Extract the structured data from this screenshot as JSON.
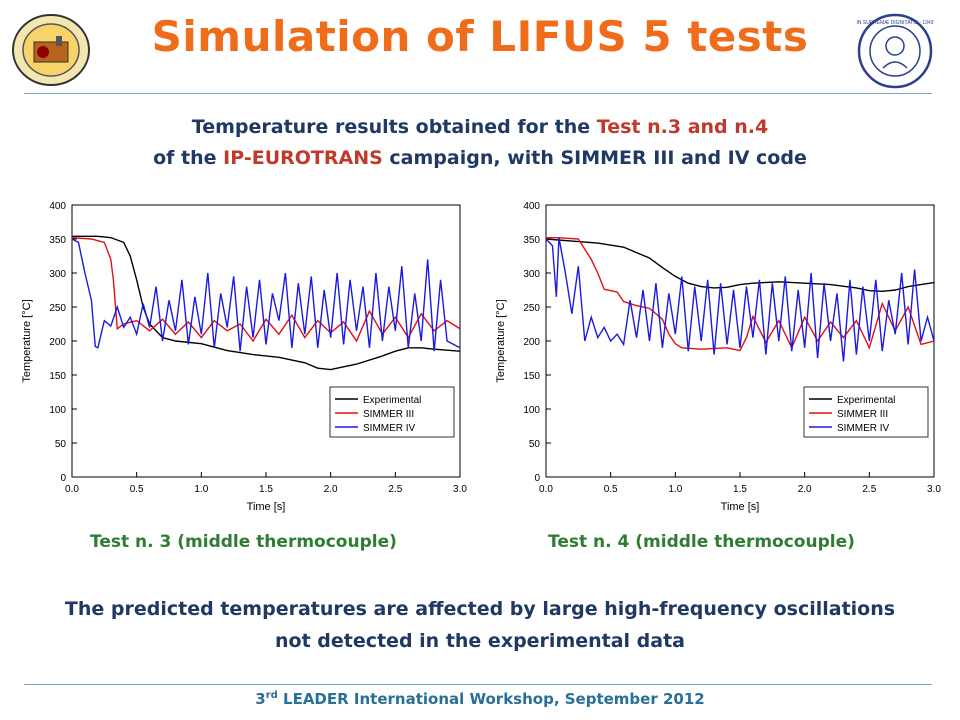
{
  "header": {
    "title": "Simulation of LIFUS 5 tests",
    "subtitle_line1_a": "Temperature results obtained for the ",
    "subtitle_line1_b": "Test n.3 and n.4",
    "subtitle_line2_a": "of the ",
    "subtitle_line2_b": "IP-EUROTRANS",
    "subtitle_line2_c": " campaign, with SIMMER III and IV code"
  },
  "captions": {
    "left": "Test n. 3 (middle thermocouple)",
    "right": "Test  n. 4 (middle thermocouple)"
  },
  "conclusion": {
    "line1": "The predicted temperatures are affected by large high-frequency oscillations",
    "line2": "not detected in the experimental data"
  },
  "footer": {
    "pre": "3",
    "sup": "rd",
    "post": " LEADER International Workshop, September 2012"
  },
  "logos": {
    "left_icon": "enea-seal-icon",
    "right_icon": "university-seal-icon",
    "right_text": "IN SUPREMÆ DIGNITATIS · 1343"
  },
  "colors": {
    "title": "#ef6c1a",
    "text": "#1f3864",
    "highlight": "#c0392b",
    "caption": "#2e7d32",
    "experimental": "#000000",
    "simmer3": "#e01010",
    "simmer4": "#1a1ae0"
  },
  "chart_data": [
    {
      "type": "line",
      "xlabel": "Time [s]",
      "ylabel": "Temperature [°C]",
      "xlim": [
        0,
        3
      ],
      "ylim": [
        0,
        400
      ],
      "xticks": [
        "0.0",
        "0.5",
        "1.0",
        "1.5",
        "2.0",
        "2.5",
        "3.0"
      ],
      "yticks": [
        "0",
        "50",
        "100",
        "150",
        "200",
        "250",
        "300",
        "350",
        "400"
      ],
      "legend_position": "bottom-right",
      "series": [
        {
          "name": "Experimental",
          "color": "#000000",
          "x": [
            0,
            0.2,
            0.3,
            0.4,
            0.45,
            0.5,
            0.55,
            0.6,
            0.7,
            0.8,
            1.0,
            1.2,
            1.4,
            1.6,
            1.7,
            1.8,
            1.9,
            2.0,
            2.2,
            2.4,
            2.5,
            2.6,
            2.7,
            2.8,
            3.0
          ],
          "y": [
            354,
            354,
            352,
            345,
            325,
            290,
            250,
            225,
            205,
            200,
            196,
            186,
            180,
            176,
            172,
            168,
            160,
            158,
            166,
            178,
            185,
            190,
            190,
            188,
            185
          ]
        },
        {
          "name": "SIMMER III",
          "color": "#e01010",
          "x": [
            0,
            0.15,
            0.25,
            0.3,
            0.32,
            0.35,
            0.4,
            0.5,
            0.6,
            0.7,
            0.8,
            0.9,
            1.0,
            1.1,
            1.2,
            1.3,
            1.4,
            1.5,
            1.6,
            1.7,
            1.8,
            1.9,
            2.0,
            2.1,
            2.2,
            2.3,
            2.4,
            2.5,
            2.6,
            2.7,
            2.8,
            2.9,
            3.0
          ],
          "y": [
            352,
            350,
            345,
            320,
            290,
            218,
            225,
            230,
            215,
            232,
            210,
            228,
            205,
            230,
            215,
            225,
            200,
            232,
            210,
            238,
            205,
            230,
            212,
            228,
            200,
            244,
            210,
            235,
            205,
            240,
            215,
            230,
            218
          ]
        },
        {
          "name": "SIMMER IV",
          "color": "#1a1ae0",
          "x": [
            0,
            0.05,
            0.1,
            0.15,
            0.18,
            0.2,
            0.25,
            0.3,
            0.35,
            0.4,
            0.45,
            0.5,
            0.55,
            0.6,
            0.65,
            0.7,
            0.75,
            0.8,
            0.85,
            0.9,
            0.95,
            1.0,
            1.05,
            1.1,
            1.15,
            1.2,
            1.25,
            1.3,
            1.35,
            1.4,
            1.45,
            1.5,
            1.55,
            1.6,
            1.65,
            1.7,
            1.75,
            1.8,
            1.85,
            1.9,
            1.95,
            2.0,
            2.05,
            2.1,
            2.15,
            2.2,
            2.25,
            2.3,
            2.35,
            2.4,
            2.45,
            2.5,
            2.55,
            2.6,
            2.65,
            2.7,
            2.75,
            2.8,
            2.85,
            2.9,
            2.95,
            3.0
          ],
          "y": [
            350,
            345,
            300,
            260,
            192,
            190,
            230,
            222,
            250,
            220,
            235,
            210,
            255,
            220,
            280,
            200,
            260,
            215,
            290,
            195,
            265,
            210,
            300,
            190,
            270,
            220,
            295,
            185,
            280,
            205,
            290,
            195,
            270,
            230,
            300,
            190,
            285,
            210,
            295,
            190,
            275,
            205,
            300,
            195,
            290,
            215,
            280,
            190,
            300,
            200,
            280,
            215,
            310,
            190,
            270,
            200,
            320,
            185,
            290,
            200,
            195,
            190
          ]
        }
      ]
    },
    {
      "type": "line",
      "xlabel": "Time [s]",
      "ylabel": "Temperature [°C]",
      "xlim": [
        0,
        3
      ],
      "ylim": [
        0,
        400
      ],
      "xticks": [
        "0.0",
        "0.5",
        "1.0",
        "1.5",
        "2.0",
        "2.5",
        "3.0"
      ],
      "yticks": [
        "0",
        "50",
        "100",
        "150",
        "200",
        "250",
        "300",
        "350",
        "400"
      ],
      "legend_position": "bottom-right",
      "series": [
        {
          "name": "Experimental",
          "color": "#000000",
          "x": [
            0,
            0.2,
            0.4,
            0.6,
            0.8,
            0.9,
            1.0,
            1.1,
            1.2,
            1.3,
            1.4,
            1.5,
            1.6,
            1.8,
            2.0,
            2.2,
            2.4,
            2.5,
            2.6,
            2.7,
            2.8,
            3.0
          ],
          "y": [
            350,
            347,
            344,
            338,
            322,
            308,
            295,
            285,
            280,
            278,
            279,
            283,
            285,
            287,
            285,
            283,
            278,
            274,
            273,
            275,
            280,
            286
          ]
        },
        {
          "name": "SIMMER III",
          "color": "#e01010",
          "x": [
            0,
            0.1,
            0.25,
            0.35,
            0.4,
            0.45,
            0.55,
            0.6,
            0.7,
            0.8,
            0.9,
            0.95,
            1.0,
            1.05,
            1.2,
            1.4,
            1.5,
            1.55,
            1.6,
            1.7,
            1.8,
            1.9,
            2.0,
            2.1,
            2.2,
            2.3,
            2.4,
            2.5,
            2.6,
            2.7,
            2.8,
            2.9,
            3.0
          ],
          "y": [
            352,
            352,
            350,
            320,
            300,
            276,
            272,
            258,
            252,
            248,
            232,
            210,
            196,
            190,
            188,
            190,
            186,
            205,
            236,
            198,
            230,
            190,
            235,
            200,
            228,
            205,
            230,
            190,
            255,
            215,
            250,
            195,
            200
          ]
        },
        {
          "name": "SIMMER IV",
          "color": "#1a1ae0",
          "x": [
            0,
            0.05,
            0.08,
            0.1,
            0.15,
            0.2,
            0.25,
            0.3,
            0.35,
            0.4,
            0.45,
            0.5,
            0.55,
            0.6,
            0.65,
            0.7,
            0.75,
            0.8,
            0.85,
            0.9,
            0.95,
            1.0,
            1.05,
            1.1,
            1.15,
            1.2,
            1.25,
            1.3,
            1.35,
            1.4,
            1.45,
            1.5,
            1.55,
            1.6,
            1.65,
            1.7,
            1.75,
            1.8,
            1.85,
            1.9,
            1.95,
            2.0,
            2.05,
            2.1,
            2.15,
            2.2,
            2.25,
            2.3,
            2.35,
            2.4,
            2.45,
            2.5,
            2.55,
            2.6,
            2.65,
            2.7,
            2.75,
            2.8,
            2.85,
            2.9,
            2.95,
            3.0
          ],
          "y": [
            350,
            340,
            265,
            352,
            300,
            240,
            310,
            200,
            235,
            205,
            220,
            200,
            210,
            195,
            260,
            205,
            275,
            200,
            285,
            190,
            270,
            210,
            295,
            185,
            280,
            200,
            290,
            180,
            285,
            195,
            275,
            190,
            280,
            205,
            290,
            180,
            285,
            200,
            295,
            185,
            275,
            190,
            300,
            175,
            285,
            200,
            270,
            170,
            290,
            180,
            280,
            200,
            290,
            185,
            260,
            210,
            300,
            195,
            305,
            200,
            235,
            200
          ]
        }
      ]
    }
  ]
}
